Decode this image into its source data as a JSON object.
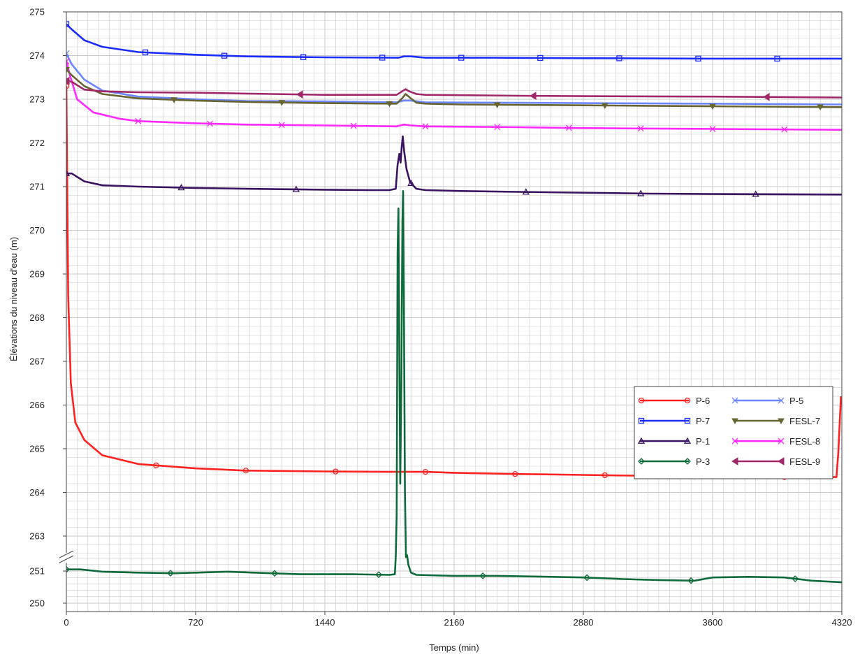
{
  "chart_data": {
    "type": "line",
    "xlabel": "Temps (min)",
    "ylabel": "Élévations du niveau d'eau (m)",
    "xlim": [
      0,
      4320
    ],
    "x_ticks": [
      0,
      720,
      1440,
      2160,
      2880,
      3600,
      4320
    ],
    "y_upper_range": [
      262.5,
      275
    ],
    "y_upper_ticks": [
      263,
      264,
      265,
      266,
      267,
      268,
      269,
      270,
      271,
      272,
      273,
      274,
      275
    ],
    "y_lower_range": [
      250,
      251.5
    ],
    "y_lower_ticks": [
      250,
      251
    ],
    "axis_break": true,
    "grid": true,
    "legend_position": "lower-right",
    "legend_columns": 2,
    "series": [
      {
        "name": "P-6",
        "color": "#ff2020",
        "marker": "circle",
        "points": [
          [
            0,
            273.3
          ],
          [
            10,
            268.5
          ],
          [
            25,
            266.5
          ],
          [
            50,
            265.6
          ],
          [
            100,
            265.2
          ],
          [
            200,
            264.85
          ],
          [
            400,
            264.65
          ],
          [
            720,
            264.55
          ],
          [
            1000,
            264.5
          ],
          [
            1440,
            264.48
          ],
          [
            1800,
            264.47
          ],
          [
            2000,
            264.47
          ],
          [
            2160,
            264.45
          ],
          [
            2520,
            264.42
          ],
          [
            2880,
            264.4
          ],
          [
            3240,
            264.38
          ],
          [
            3600,
            264.36
          ],
          [
            4000,
            264.35
          ],
          [
            4290,
            264.35
          ],
          [
            4300,
            264.9
          ],
          [
            4315,
            266.2
          ]
        ],
        "markers_x": [
          0,
          500,
          1000,
          1500,
          2000,
          2500,
          3000,
          3500,
          4000
        ]
      },
      {
        "name": "P-7",
        "color": "#1a2cff",
        "marker": "square",
        "points": [
          [
            0,
            274.72
          ],
          [
            30,
            274.6
          ],
          [
            100,
            274.35
          ],
          [
            200,
            274.2
          ],
          [
            400,
            274.08
          ],
          [
            720,
            274.02
          ],
          [
            1000,
            273.98
          ],
          [
            1440,
            273.96
          ],
          [
            1850,
            273.95
          ],
          [
            1880,
            273.98
          ],
          [
            1920,
            273.98
          ],
          [
            2000,
            273.95
          ],
          [
            2400,
            273.95
          ],
          [
            2880,
            273.94
          ],
          [
            3600,
            273.93
          ],
          [
            4320,
            273.93
          ]
        ],
        "markers_x": [
          0,
          440,
          880,
          1320,
          1760,
          2200,
          2640,
          3080,
          3520,
          3960
        ]
      },
      {
        "name": "P-1",
        "color": "#3a1460",
        "marker": "triangle",
        "points": [
          [
            0,
            271.3
          ],
          [
            30,
            271.3
          ],
          [
            100,
            271.12
          ],
          [
            200,
            271.03
          ],
          [
            400,
            271.0
          ],
          [
            720,
            270.97
          ],
          [
            1000,
            270.95
          ],
          [
            1440,
            270.93
          ],
          [
            1700,
            270.92
          ],
          [
            1800,
            270.92
          ],
          [
            1835,
            270.95
          ],
          [
            1845,
            271.5
          ],
          [
            1855,
            271.75
          ],
          [
            1862,
            271.55
          ],
          [
            1868,
            271.9
          ],
          [
            1874,
            272.15
          ],
          [
            1882,
            271.8
          ],
          [
            1895,
            271.4
          ],
          [
            1915,
            271.1
          ],
          [
            1950,
            270.95
          ],
          [
            2000,
            270.92
          ],
          [
            2200,
            270.9
          ],
          [
            2520,
            270.88
          ],
          [
            2880,
            270.86
          ],
          [
            3240,
            270.84
          ],
          [
            3600,
            270.83
          ],
          [
            4320,
            270.82
          ]
        ],
        "markers_x": [
          0,
          640,
          1280,
          1920,
          2560,
          3200,
          3840
        ]
      },
      {
        "name": "P-3",
        "color": "#0e6a3a",
        "marker": "diamond",
        "points": [
          [
            0,
            251.05
          ],
          [
            80,
            251.05
          ],
          [
            200,
            250.98
          ],
          [
            400,
            250.95
          ],
          [
            600,
            250.93
          ],
          [
            720,
            250.95
          ],
          [
            900,
            250.98
          ],
          [
            1100,
            250.94
          ],
          [
            1300,
            250.9
          ],
          [
            1440,
            250.9
          ],
          [
            1600,
            250.9
          ],
          [
            1800,
            250.88
          ],
          [
            1830,
            250.9
          ],
          [
            1835,
            257
          ],
          [
            1840,
            263.5
          ],
          [
            1845,
            269.5
          ],
          [
            1850,
            270.5
          ],
          [
            1855,
            267
          ],
          [
            1860,
            264.2
          ],
          [
            1866,
            266.5
          ],
          [
            1872,
            270.2
          ],
          [
            1876,
            270.9
          ],
          [
            1880,
            268.5
          ],
          [
            1886,
            264
          ],
          [
            1892,
            259
          ],
          [
            1898,
            252.5
          ],
          [
            1905,
            251.2
          ],
          [
            1920,
            250.95
          ],
          [
            1950,
            250.88
          ],
          [
            2160,
            250.85
          ],
          [
            2400,
            250.85
          ],
          [
            2600,
            250.83
          ],
          [
            2880,
            250.8
          ],
          [
            3100,
            250.75
          ],
          [
            3300,
            250.72
          ],
          [
            3500,
            250.7
          ],
          [
            3600,
            250.8
          ],
          [
            3800,
            250.82
          ],
          [
            4000,
            250.8
          ],
          [
            4150,
            250.7
          ],
          [
            4320,
            250.65
          ]
        ],
        "markers_x": [
          0,
          580,
          1160,
          1740,
          2320,
          2900,
          3480,
          4060
        ]
      },
      {
        "name": "P-5",
        "color": "#6b86ff",
        "marker": "x",
        "points": [
          [
            0,
            274.05
          ],
          [
            30,
            273.8
          ],
          [
            100,
            273.45
          ],
          [
            200,
            273.2
          ],
          [
            400,
            273.06
          ],
          [
            720,
            273.0
          ],
          [
            1000,
            272.96
          ],
          [
            1440,
            272.95
          ],
          [
            1840,
            272.93
          ],
          [
            1880,
            272.97
          ],
          [
            1920,
            272.97
          ],
          [
            2000,
            272.93
          ],
          [
            2520,
            272.92
          ],
          [
            2880,
            272.91
          ],
          [
            3600,
            272.9
          ],
          [
            4320,
            272.88
          ]
        ],
        "markers_x": [
          0
        ]
      },
      {
        "name": "FESL-7",
        "color": "#686432",
        "marker": "arrow-down",
        "points": [
          [
            0,
            273.68
          ],
          [
            30,
            273.55
          ],
          [
            100,
            273.3
          ],
          [
            200,
            273.12
          ],
          [
            400,
            273.02
          ],
          [
            720,
            272.97
          ],
          [
            1000,
            272.94
          ],
          [
            1440,
            272.91
          ],
          [
            1800,
            272.9
          ],
          [
            1840,
            272.9
          ],
          [
            1870,
            273.02
          ],
          [
            1890,
            273.12
          ],
          [
            1910,
            273.05
          ],
          [
            1950,
            272.92
          ],
          [
            2000,
            272.9
          ],
          [
            2200,
            272.88
          ],
          [
            2520,
            272.87
          ],
          [
            2880,
            272.86
          ],
          [
            3240,
            272.85
          ],
          [
            3600,
            272.84
          ],
          [
            4320,
            272.82
          ]
        ],
        "markers_x": [
          0,
          600,
          1200,
          1800,
          2400,
          3000,
          3600,
          4200
        ]
      },
      {
        "name": "FESL-8",
        "color": "#ff28ff",
        "marker": "x",
        "points": [
          [
            0,
            273.87
          ],
          [
            20,
            273.55
          ],
          [
            60,
            273.0
          ],
          [
            150,
            272.7
          ],
          [
            300,
            272.55
          ],
          [
            400,
            272.5
          ],
          [
            720,
            272.45
          ],
          [
            1000,
            272.42
          ],
          [
            1440,
            272.4
          ],
          [
            1840,
            272.38
          ],
          [
            1880,
            272.42
          ],
          [
            1920,
            272.4
          ],
          [
            2000,
            272.38
          ],
          [
            2520,
            272.36
          ],
          [
            2880,
            272.34
          ],
          [
            3240,
            272.33
          ],
          [
            3600,
            272.32
          ],
          [
            4320,
            272.3
          ]
        ],
        "markers_x": [
          0,
          400,
          800,
          1200,
          1600,
          2000,
          2400,
          2800,
          3200,
          3600,
          4000
        ]
      },
      {
        "name": "FESL-9",
        "color": "#a02868",
        "marker": "arrow-left",
        "points": [
          [
            0,
            273.42
          ],
          [
            30,
            273.4
          ],
          [
            100,
            273.22
          ],
          [
            200,
            273.18
          ],
          [
            400,
            273.16
          ],
          [
            720,
            273.15
          ],
          [
            1000,
            273.13
          ],
          [
            1440,
            273.1
          ],
          [
            1840,
            273.1
          ],
          [
            1870,
            273.18
          ],
          [
            1890,
            273.23
          ],
          [
            1910,
            273.18
          ],
          [
            1950,
            273.12
          ],
          [
            2000,
            273.1
          ],
          [
            2520,
            273.08
          ],
          [
            2880,
            273.07
          ],
          [
            3600,
            273.06
          ],
          [
            4320,
            273.04
          ]
        ],
        "markers_x": [
          0,
          1300,
          2600,
          3900
        ]
      }
    ]
  }
}
